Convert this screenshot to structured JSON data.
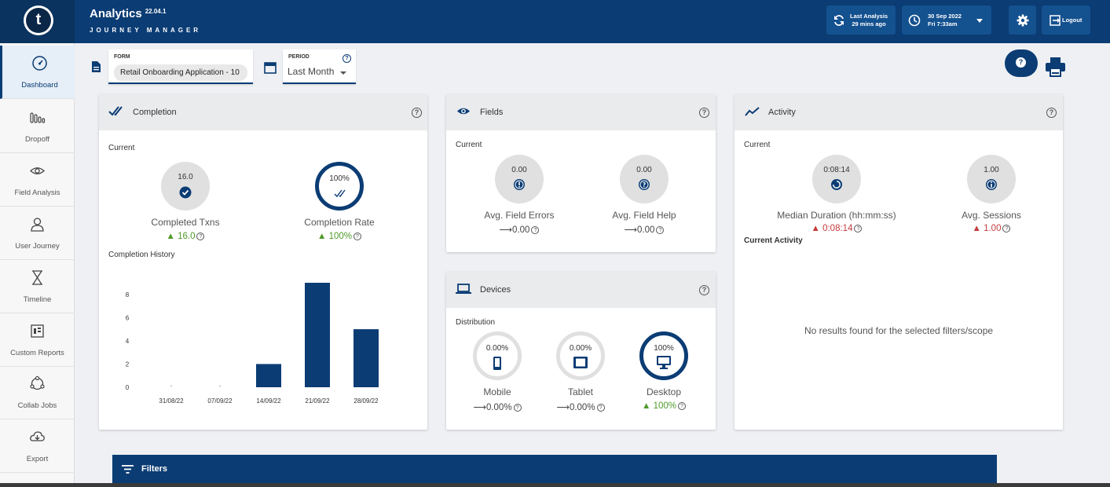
{
  "header": {
    "logo_letter": "t",
    "title": "Analytics",
    "version": "22.04.1",
    "subtitle": "JOURNEY MANAGER",
    "last_analysis_label": "Last Analysis",
    "last_analysis_value": "29 mins ago",
    "date": "30 Sep 2022",
    "time": "Fri 7:33am",
    "logout_label": "Logout"
  },
  "sidebar": {
    "items": [
      {
        "label": "Dashboard",
        "icon": "gauge-icon"
      },
      {
        "label": "Dropoff",
        "icon": "bars-icon"
      },
      {
        "label": "Field Analysis",
        "icon": "eye-icon"
      },
      {
        "label": "User Journey",
        "icon": "user-icon"
      },
      {
        "label": "Timeline",
        "icon": "hourglass-icon"
      },
      {
        "label": "Custom Reports",
        "icon": "report-icon"
      },
      {
        "label": "Collab Jobs",
        "icon": "collab-icon"
      },
      {
        "label": "Export",
        "icon": "cloud-download-icon"
      }
    ]
  },
  "selectors": {
    "form_label": "FORM",
    "form_value": "Retail Onboarding Application - 10",
    "period_label": "PERIOD",
    "period_value": "Last Month"
  },
  "completion": {
    "title": "Completion",
    "current_label": "Current",
    "txns_value": "16.0",
    "txns_label": "Completed Txns",
    "txns_delta": "16.0",
    "rate_value": "100%",
    "rate_label": "Completion Rate",
    "rate_delta": "100%",
    "history_label": "Completion History"
  },
  "chart_data": {
    "type": "bar",
    "categories": [
      "31/08/22",
      "07/09/22",
      "14/09/22",
      "21/09/22",
      "28/09/22"
    ],
    "values": [
      0,
      0,
      2,
      9,
      5
    ],
    "yticks": [
      0,
      2,
      4,
      6,
      8
    ],
    "ylim": [
      0,
      9
    ],
    "title": "Completion History",
    "color": "#0b3c74"
  },
  "fields": {
    "title": "Fields",
    "current_label": "Current",
    "errors_value": "0.00",
    "errors_label": "Avg. Field Errors",
    "errors_delta": "0.00",
    "help_value": "0.00",
    "help_label": "Avg. Field Help",
    "help_delta": "0.00"
  },
  "devices": {
    "title": "Devices",
    "dist_label": "Distribution",
    "mobile_value": "0.00%",
    "mobile_label": "Mobile",
    "mobile_delta": "0.00%",
    "tablet_value": "0.00%",
    "tablet_label": "Tablet",
    "tablet_delta": "0.00%",
    "desktop_value": "100%",
    "desktop_label": "Desktop",
    "desktop_delta": "100%"
  },
  "activity": {
    "title": "Activity",
    "current_label": "Current",
    "duration_value": "0:08:14",
    "duration_label": "Median Duration (hh:mm:ss)",
    "duration_delta": "0:08:14",
    "sessions_value": "1.00",
    "sessions_label": "Avg. Sessions",
    "sessions_delta": "1.00",
    "current_activity_label": "Current Activity",
    "empty_message": "No results found for the selected filters/scope"
  },
  "filters": {
    "label": "Filters"
  },
  "colors": {
    "brand": "#0b3c74",
    "positive": "#4f9a2a",
    "negative": "#c43d3d"
  }
}
